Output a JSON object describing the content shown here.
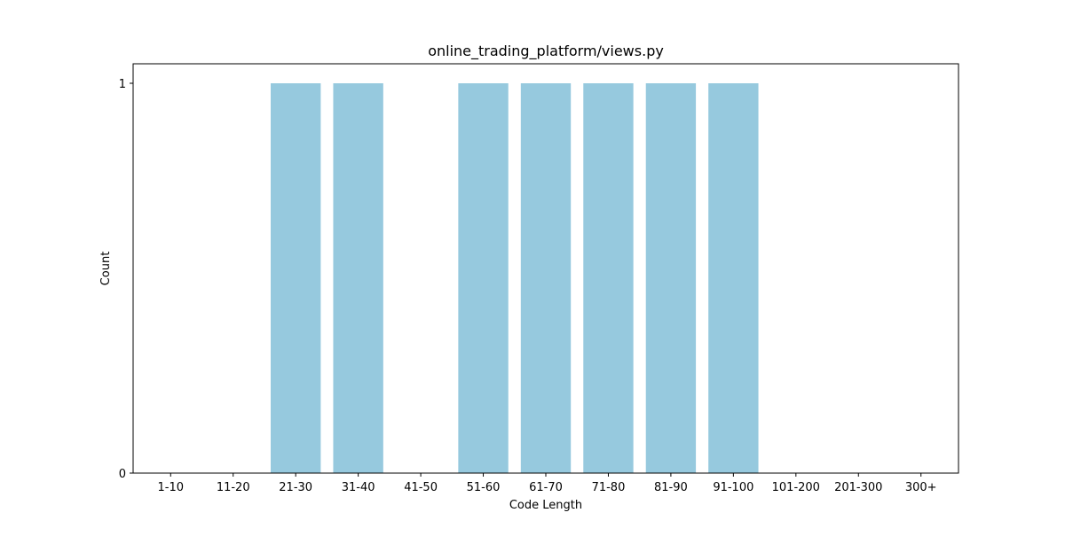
{
  "chart_data": {
    "type": "bar",
    "title": "online_trading_platform/views.py",
    "xlabel": "Code Length",
    "ylabel": "Count",
    "categories": [
      "1-10",
      "11-20",
      "21-30",
      "31-40",
      "41-50",
      "51-60",
      "61-70",
      "71-80",
      "81-90",
      "91-100",
      "101-200",
      "201-300",
      "300+"
    ],
    "values": [
      0,
      0,
      1,
      1,
      0,
      1,
      1,
      1,
      1,
      1,
      0,
      0,
      0
    ],
    "ylim": [
      0,
      1.05
    ],
    "yticks": [
      {
        "value": 0,
        "label": "0"
      },
      {
        "value": 1,
        "label": "1"
      }
    ],
    "bar_color": "#96c9de",
    "grid": false,
    "legend": "none"
  }
}
